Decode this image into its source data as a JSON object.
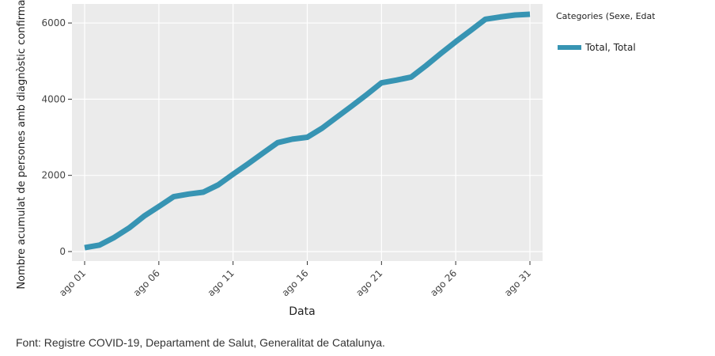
{
  "chart_data": {
    "type": "line",
    "xlabel": "Data",
    "ylabel": "Nombre acumulat de persones amb diagnòstic confirmat",
    "x": [
      "ago 01",
      "ago 02",
      "ago 03",
      "ago 04",
      "ago 05",
      "ago 06",
      "ago 07",
      "ago 08",
      "ago 09",
      "ago 10",
      "ago 11",
      "ago 12",
      "ago 13",
      "ago 14",
      "ago 15",
      "ago 16",
      "ago 17",
      "ago 18",
      "ago 19",
      "ago 20",
      "ago 21",
      "ago 22",
      "ago 23",
      "ago 24",
      "ago 25",
      "ago 26",
      "ago 27",
      "ago 28",
      "ago 29",
      "ago 30",
      "ago 31"
    ],
    "x_ticks": [
      "ago 01",
      "ago 06",
      "ago 11",
      "ago 16",
      "ago 21",
      "ago 26",
      "ago 31"
    ],
    "y_ticks": [
      0,
      2000,
      4000,
      6000
    ],
    "ylim": [
      -250,
      6500
    ],
    "grid": true,
    "legend": {
      "title": "Categories (Sexe, Edat)",
      "position": "right"
    },
    "series": [
      {
        "name": "Total, Total",
        "color": "#3794b3",
        "values": [
          100,
          170,
          370,
          620,
          930,
          1180,
          1440,
          1510,
          1560,
          1750,
          2030,
          2300,
          2580,
          2860,
          2950,
          3000,
          3240,
          3530,
          3820,
          4120,
          4430,
          4500,
          4580,
          4880,
          5200,
          5510,
          5800,
          6100,
          6160,
          6210,
          6230
        ]
      }
    ]
  },
  "source_note": "Font: Registre COVID-19, Departament de Salut, Generalitat de Catalunya."
}
